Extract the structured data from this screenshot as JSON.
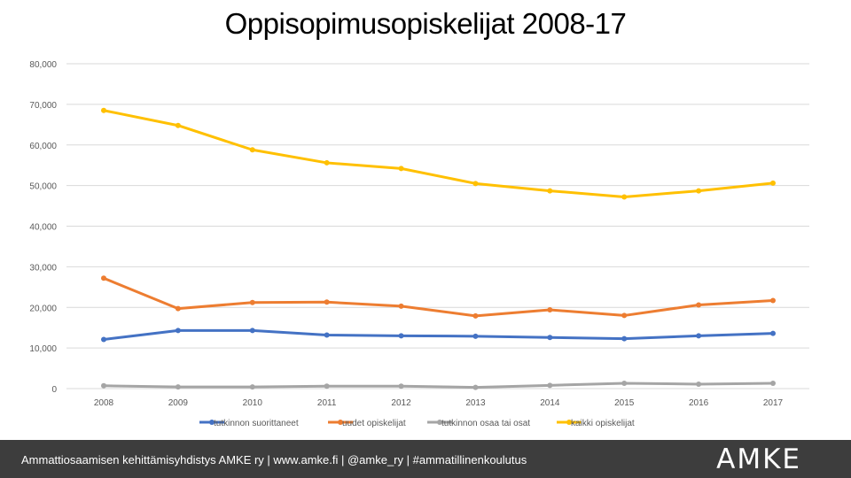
{
  "chart_data": {
    "type": "line",
    "title": "Oppisopimusopiskelijat 2008-17",
    "categories": [
      "2008",
      "2009",
      "2010",
      "2011",
      "2012",
      "2013",
      "2014",
      "2015",
      "2016",
      "2017"
    ],
    "ylim": [
      0,
      80000
    ],
    "yticks": [
      0,
      10000,
      20000,
      30000,
      40000,
      50000,
      60000,
      70000,
      80000
    ],
    "ytick_labels": [
      "0",
      "10,000",
      "20,000",
      "30,000",
      "40,000",
      "50,000",
      "60,000",
      "70,000",
      "80,000"
    ],
    "grid": true,
    "legend_position": "bottom",
    "series": [
      {
        "name": "tutkinnon suorittaneet",
        "color": "#4472c4",
        "values": [
          12100,
          14300,
          14300,
          13200,
          13000,
          12900,
          12600,
          12300,
          13000,
          13600
        ]
      },
      {
        "name": "uudet opiskelijat",
        "color": "#ed7d31",
        "values": [
          27200,
          19700,
          21200,
          21300,
          20300,
          17900,
          19400,
          18000,
          20600,
          21700
        ]
      },
      {
        "name": "tutkinnon osaa tai osat",
        "color": "#a5a5a5",
        "values": [
          700,
          400,
          400,
          600,
          600,
          300,
          800,
          1300,
          1100,
          1300
        ]
      },
      {
        "name": "kaikki opiskelijat",
        "color": "#ffc000",
        "values": [
          68500,
          64800,
          58800,
          55600,
          54200,
          50500,
          48700,
          47200,
          48700,
          50600
        ]
      }
    ]
  },
  "footer": {
    "text": "Ammattiosaamisen kehittämisyhdistys AMKE ry  | www.amke.fi  | @amke_ry  |  #ammatillinenkoulutus",
    "logo": "AMKE"
  }
}
